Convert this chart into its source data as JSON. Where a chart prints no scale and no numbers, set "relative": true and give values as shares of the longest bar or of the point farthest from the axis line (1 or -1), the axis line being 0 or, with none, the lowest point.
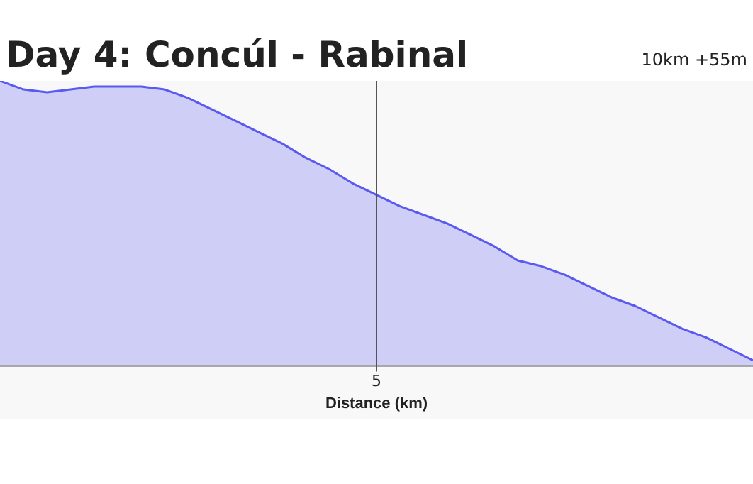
{
  "chart_data": {
    "type": "area",
    "title": "Day 4: Concúl - Rabinal",
    "subtitle": "10km +55m",
    "xlabel": "Distance (km)",
    "relative": true,
    "marker": "none",
    "color": "#5a5af0",
    "annotations": [
      "5"
    ],
    "categories": [
      null,
      null,
      null,
      null,
      null,
      null,
      null,
      null,
      null,
      null,
      null,
      null,
      null,
      null,
      null,
      null,
      null,
      null,
      null,
      null,
      null,
      null,
      null,
      null,
      null,
      null,
      null,
      null,
      null,
      null,
      null,
      null,
      null
    ],
    "values": [
      1,
      0.97,
      0.96,
      0.97,
      0.98,
      0.98,
      0.98,
      0.97,
      0.94,
      0.9,
      0.86,
      0.82,
      0.78,
      0.73,
      0.69,
      0.64,
      0.6,
      0.56,
      0.53,
      0.5,
      0.46,
      0.42,
      0.37,
      0.35,
      0.32,
      0.28,
      0.24,
      0.21,
      0.17,
      0.13,
      0.1,
      0.06,
      0.02
    ]
  }
}
